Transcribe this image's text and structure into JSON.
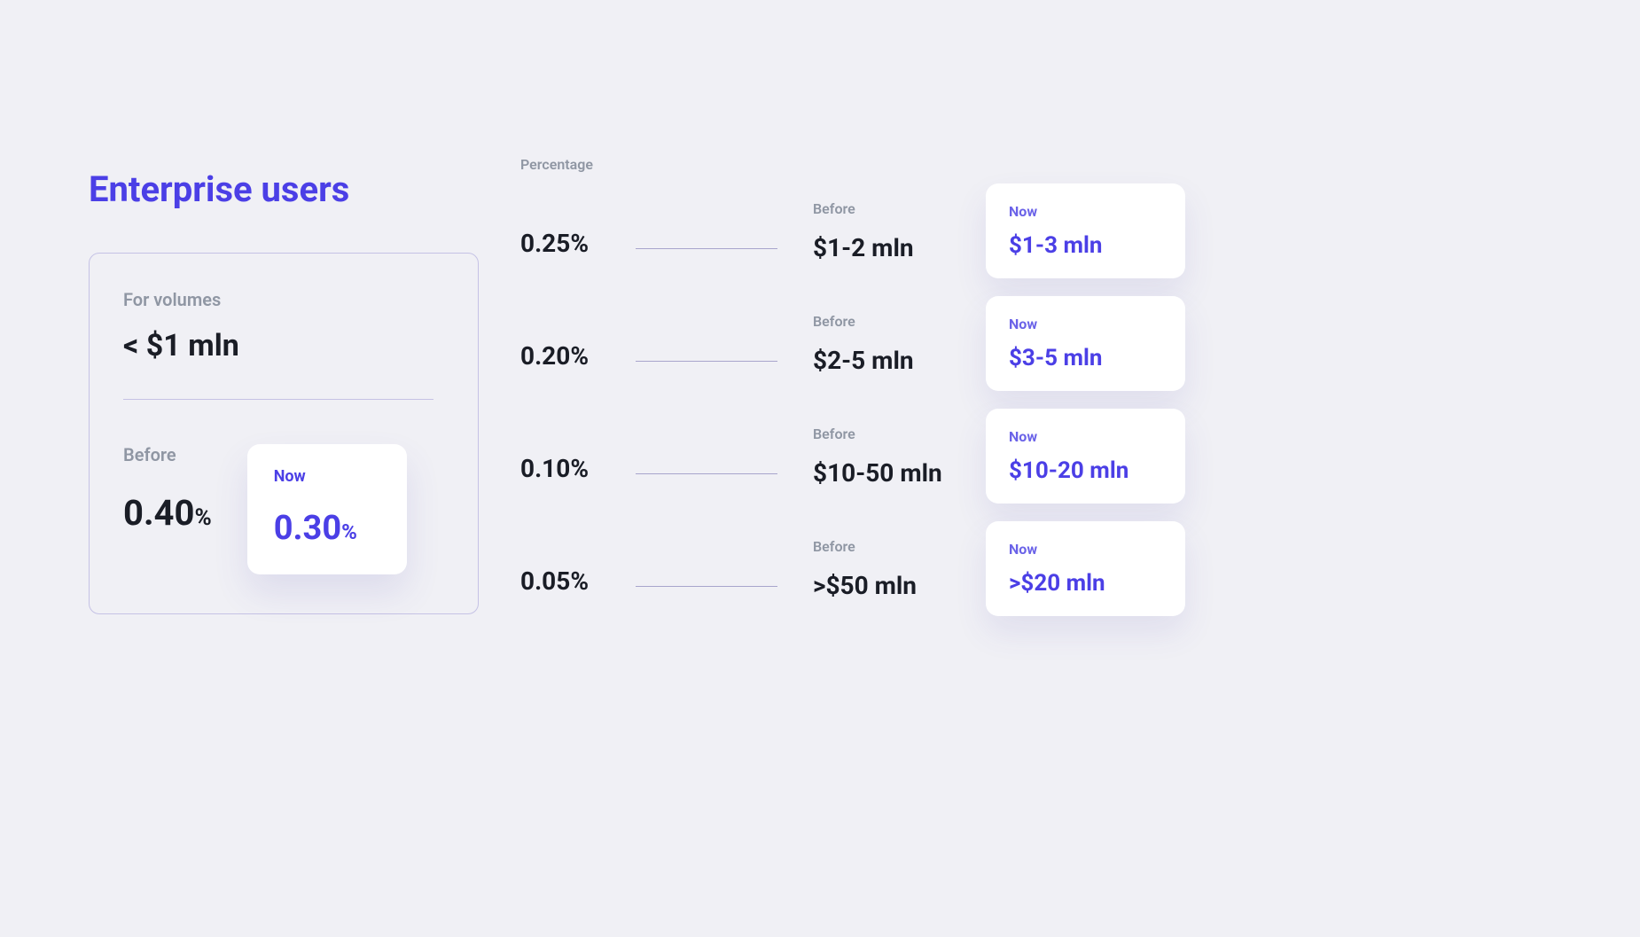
{
  "page": {
    "title": "Enterprise users",
    "background": "#f0f0f5",
    "accent_color": "#4b3fe6",
    "text_muted": "#8f96a3",
    "text_dark": "#1a1d26"
  },
  "main_card": {
    "label": "For volumes",
    "value": "< $1 mln",
    "before": {
      "label": "Before",
      "value": "0.40",
      "unit": "%"
    },
    "now": {
      "label": "Now",
      "value": "0.30",
      "unit": "%"
    },
    "border_color": "#c5c2e5",
    "divider_color": "#c5c2e5"
  },
  "tiers": {
    "header_percentage": "Percentage",
    "line_color": "#a8a5cc",
    "card_background": "#ffffff",
    "rows": [
      {
        "percentage": "0.25%",
        "before": {
          "label": "Before",
          "value": "$1-2 mln"
        },
        "now": {
          "label": "Now",
          "value": "$1-3 mln"
        }
      },
      {
        "percentage": "0.20%",
        "before": {
          "label": "Before",
          "value": "$2-5 mln"
        },
        "now": {
          "label": "Now",
          "value": "$3-5 mln"
        }
      },
      {
        "percentage": "0.10%",
        "before": {
          "label": "Before",
          "value": "$10-50 mln"
        },
        "now": {
          "label": "Now",
          "value": "$10-20 mln"
        }
      },
      {
        "percentage": "0.05%",
        "before": {
          "label": "Before",
          "value": ">$50 mln"
        },
        "now": {
          "label": "Now",
          "value": ">$20 mln"
        }
      }
    ]
  }
}
